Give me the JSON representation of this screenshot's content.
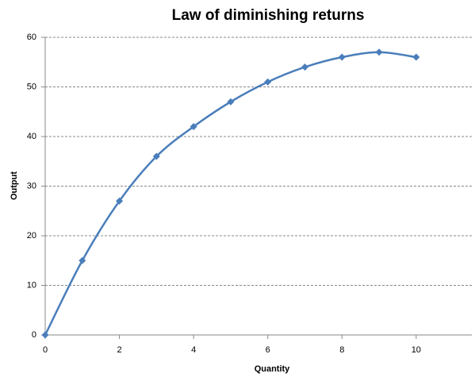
{
  "chart_data": {
    "type": "line",
    "title": "Law of diminishing returns",
    "x_label": "Quantity",
    "y_label": "Output",
    "x": [
      0,
      1,
      2,
      3,
      4,
      5,
      6,
      7,
      8,
      9,
      10
    ],
    "series": [
      {
        "name": "Output",
        "color": "#4a7ebb",
        "values": [
          0,
          15,
          27,
          36,
          42,
          47,
          51,
          54,
          56,
          57,
          56
        ]
      }
    ],
    "xlim": [
      0,
      11.5
    ],
    "xticks": [
      0,
      2,
      4,
      6,
      8,
      10
    ],
    "ylim": [
      0,
      60
    ],
    "yticks": [
      0,
      10,
      20,
      30,
      40,
      50,
      60
    ],
    "grid": true,
    "smooth": true
  }
}
